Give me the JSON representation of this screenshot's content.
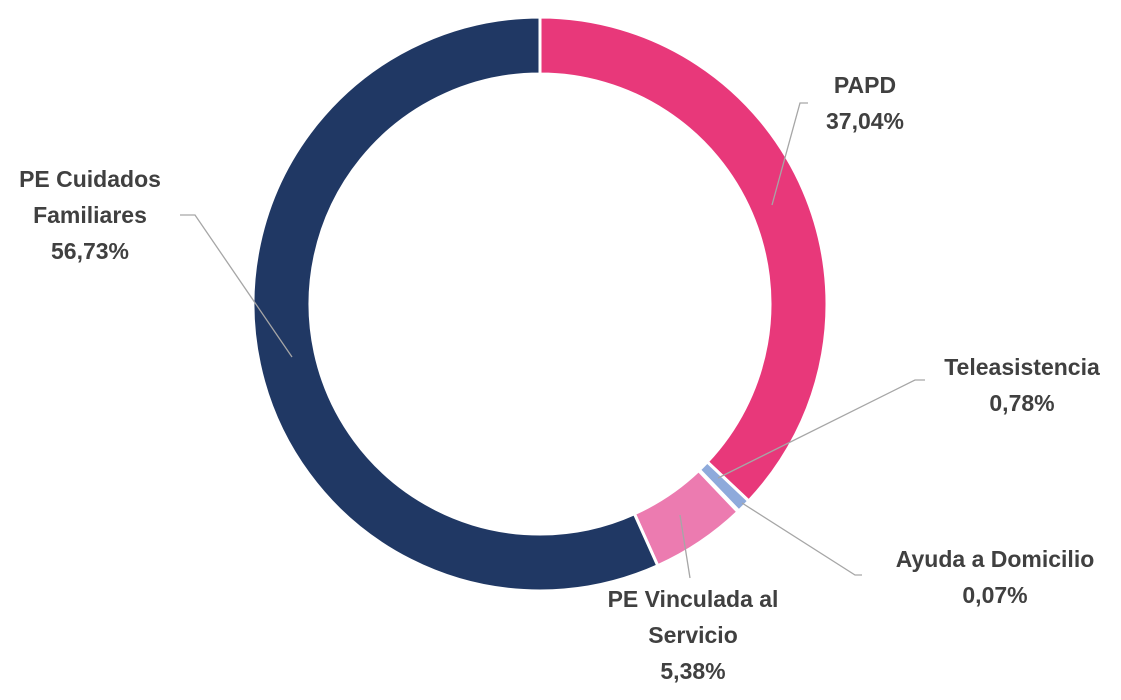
{
  "chart_data": {
    "type": "donut",
    "categories": [
      "PAPD",
      "Teleasistencia",
      "Ayuda a Domicilio",
      "PE Vinculada al Servicio",
      "PE Cuidados Familiares"
    ],
    "values": [
      37.04,
      0.78,
      0.07,
      5.38,
      56.73
    ],
    "value_labels": [
      "37,04%",
      "0,78%",
      "0,07%",
      "5,38%",
      "56,73%"
    ],
    "colors": [
      "#e8387a",
      "#8eaadb",
      "#2f5597",
      "#ec7bb0",
      "#203864"
    ]
  }
}
